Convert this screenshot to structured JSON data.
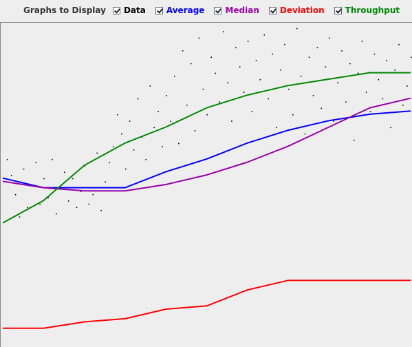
{
  "toolbar": {
    "title": "Graphs to Display",
    "checkboxes": [
      {
        "label": "Data",
        "checked": true,
        "color": "#000000"
      },
      {
        "label": "Average",
        "checked": true,
        "color": "#0000ff"
      },
      {
        "label": "Median",
        "checked": true,
        "color": "#9900aa"
      },
      {
        "label": "Deviation",
        "checked": true,
        "color": "#ff0000"
      },
      {
        "label": "Throughput",
        "checked": true,
        "color": "#008800"
      }
    ]
  },
  "chart_data": {
    "type": "line",
    "title": "",
    "xlabel": "",
    "ylabel": "",
    "x": [
      0,
      10,
      20,
      30,
      40,
      50,
      60,
      70,
      80,
      90,
      100
    ],
    "series": [
      {
        "name": "Average",
        "color": "#0000ff",
        "values": [
          0.52,
          0.49,
          0.49,
          0.49,
          0.54,
          0.58,
          0.63,
          0.67,
          0.7,
          0.72,
          0.73
        ]
      },
      {
        "name": "Median",
        "color": "#9900aa",
        "values": [
          0.51,
          0.49,
          0.48,
          0.48,
          0.5,
          0.53,
          0.57,
          0.62,
          0.68,
          0.74,
          0.77
        ]
      },
      {
        "name": "Deviation",
        "color": "#ff0000",
        "values": [
          0.05,
          0.05,
          0.07,
          0.08,
          0.11,
          0.12,
          0.17,
          0.2,
          0.2,
          0.2,
          0.2
        ]
      },
      {
        "name": "Throughput",
        "color": "#008800",
        "values": [
          0.38,
          0.45,
          0.56,
          0.63,
          0.68,
          0.74,
          0.78,
          0.81,
          0.83,
          0.85,
          0.85
        ]
      }
    ],
    "scatter_series": {
      "name": "Data",
      "color": "#000000",
      "points": [
        [
          1,
          0.58
        ],
        [
          2,
          0.53
        ],
        [
          3,
          0.47
        ],
        [
          4,
          0.4
        ],
        [
          5,
          0.55
        ],
        [
          6,
          0.43
        ],
        [
          7,
          0.5
        ],
        [
          8,
          0.57
        ],
        [
          9,
          0.44
        ],
        [
          10,
          0.52
        ],
        [
          11,
          0.46
        ],
        [
          12,
          0.58
        ],
        [
          13,
          0.41
        ],
        [
          14,
          0.49
        ],
        [
          15,
          0.54
        ],
        [
          16,
          0.45
        ],
        [
          17,
          0.52
        ],
        [
          18,
          0.43
        ],
        [
          19,
          0.48
        ],
        [
          20,
          0.56
        ],
        [
          21,
          0.44
        ],
        [
          22,
          0.47
        ],
        [
          23,
          0.6
        ],
        [
          24,
          0.42
        ],
        [
          25,
          0.51
        ],
        [
          26,
          0.57
        ],
        [
          27,
          0.62
        ],
        [
          28,
          0.72
        ],
        [
          29,
          0.66
        ],
        [
          30,
          0.55
        ],
        [
          31,
          0.7
        ],
        [
          32,
          0.61
        ],
        [
          33,
          0.77
        ],
        [
          34,
          0.65
        ],
        [
          35,
          0.58
        ],
        [
          36,
          0.81
        ],
        [
          37,
          0.68
        ],
        [
          38,
          0.73
        ],
        [
          39,
          0.62
        ],
        [
          40,
          0.78
        ],
        [
          41,
          0.7
        ],
        [
          42,
          0.84
        ],
        [
          43,
          0.63
        ],
        [
          44,
          0.92
        ],
        [
          45,
          0.75
        ],
        [
          46,
          0.88
        ],
        [
          47,
          0.67
        ],
        [
          48,
          0.96
        ],
        [
          49,
          0.8
        ],
        [
          50,
          0.72
        ],
        [
          51,
          0.9
        ],
        [
          52,
          0.85
        ],
        [
          53,
          0.76
        ],
        [
          54,
          0.98
        ],
        [
          55,
          0.82
        ],
        [
          56,
          0.7
        ],
        [
          57,
          0.93
        ],
        [
          58,
          0.87
        ],
        [
          59,
          0.79
        ],
        [
          60,
          0.95
        ],
        [
          61,
          0.73
        ],
        [
          62,
          0.89
        ],
        [
          63,
          0.83
        ],
        [
          64,
          0.97
        ],
        [
          65,
          0.77
        ],
        [
          66,
          0.91
        ],
        [
          67,
          0.68
        ],
        [
          68,
          0.86
        ],
        [
          69,
          0.94
        ],
        [
          70,
          0.8
        ],
        [
          71,
          0.72
        ],
        [
          72,
          0.99
        ],
        [
          73,
          0.84
        ],
        [
          74,
          0.66
        ],
        [
          75,
          0.9
        ],
        [
          76,
          0.78
        ],
        [
          77,
          0.93
        ],
        [
          78,
          0.74
        ],
        [
          79,
          0.87
        ],
        [
          80,
          0.96
        ],
        [
          81,
          0.7
        ],
        [
          82,
          0.82
        ],
        [
          83,
          0.92
        ],
        [
          84,
          0.76
        ],
        [
          85,
          0.88
        ],
        [
          86,
          0.64
        ],
        [
          87,
          0.85
        ],
        [
          88,
          0.95
        ],
        [
          89,
          0.79
        ],
        [
          90,
          0.73
        ],
        [
          91,
          0.91
        ],
        [
          92,
          0.83
        ],
        [
          93,
          0.77
        ],
        [
          94,
          0.89
        ],
        [
          95,
          0.68
        ],
        [
          96,
          0.86
        ],
        [
          97,
          0.94
        ],
        [
          98,
          0.75
        ],
        [
          99,
          0.81
        ],
        [
          100,
          0.9
        ]
      ]
    }
  }
}
